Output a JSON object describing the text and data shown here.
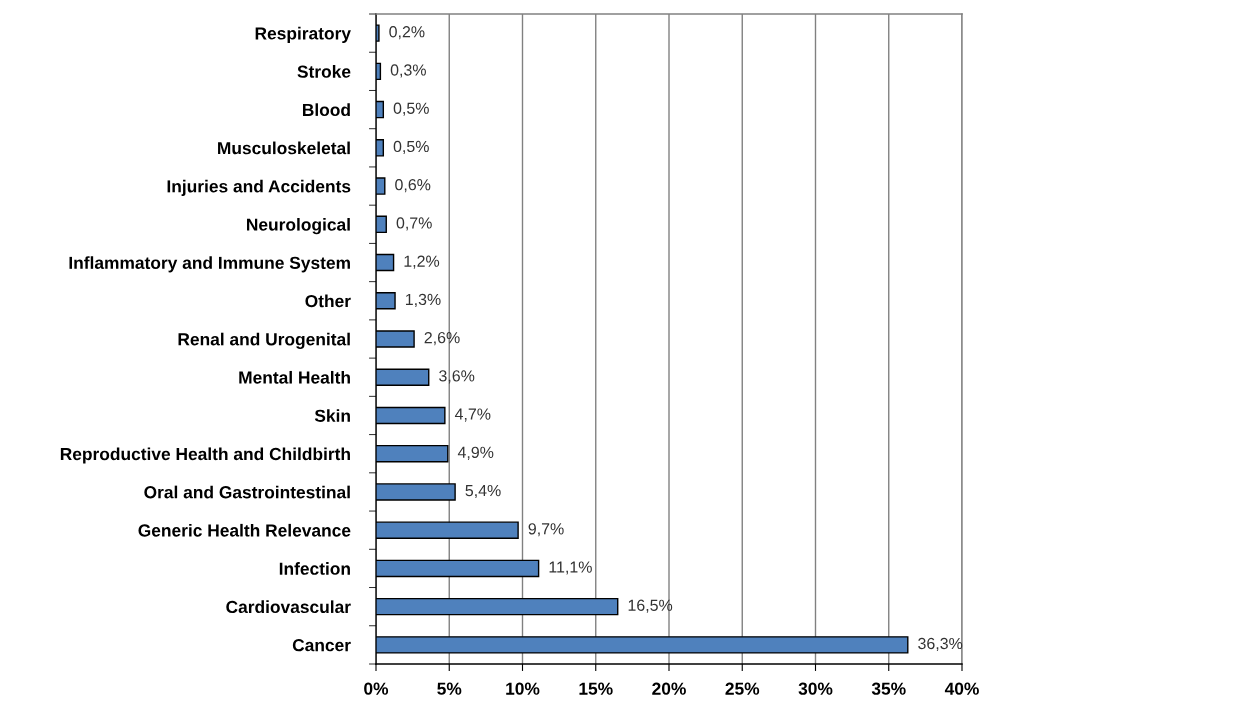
{
  "chart_data": {
    "type": "bar",
    "orientation": "horizontal",
    "categories": [
      "Respiratory",
      "Stroke",
      "Blood",
      "Musculoskeletal",
      "Injuries and Accidents",
      "Neurological",
      "Inflammatory and Immune System",
      "Other",
      "Renal and Urogenital",
      "Mental Health",
      "Skin",
      "Reproductive Health and Childbirth",
      "Oral and Gastrointestinal",
      "Generic Health Relevance",
      "Infection",
      "Cardiovascular",
      "Cancer"
    ],
    "values": [
      0.2,
      0.3,
      0.5,
      0.5,
      0.6,
      0.7,
      1.2,
      1.3,
      2.6,
      3.6,
      4.7,
      4.9,
      5.4,
      9.7,
      11.1,
      16.5,
      36.3
    ],
    "value_labels": [
      "0,2%",
      "0,3%",
      "0,5%",
      "0,5%",
      "0,6%",
      "0,7%",
      "1,2%",
      "1,3%",
      "2,6%",
      "3,6%",
      "4,7%",
      "4,9%",
      "5,4%",
      "9,7%",
      "11,1%",
      "16,5%",
      "36,3%"
    ],
    "color": "#4f81bd",
    "xlim": [
      0,
      40
    ],
    "xticks": [
      {
        "value": 0,
        "label": "0%"
      },
      {
        "value": 5,
        "label": "5%"
      },
      {
        "value": 10,
        "label": "10%"
      },
      {
        "value": 15,
        "label": "15%"
      },
      {
        "value": 20,
        "label": "20%"
      },
      {
        "value": 25,
        "label": "25%"
      },
      {
        "value": 30,
        "label": "30%"
      },
      {
        "value": 35,
        "label": "35%"
      },
      {
        "value": 40,
        "label": "40%"
      }
    ],
    "grid": "x"
  }
}
